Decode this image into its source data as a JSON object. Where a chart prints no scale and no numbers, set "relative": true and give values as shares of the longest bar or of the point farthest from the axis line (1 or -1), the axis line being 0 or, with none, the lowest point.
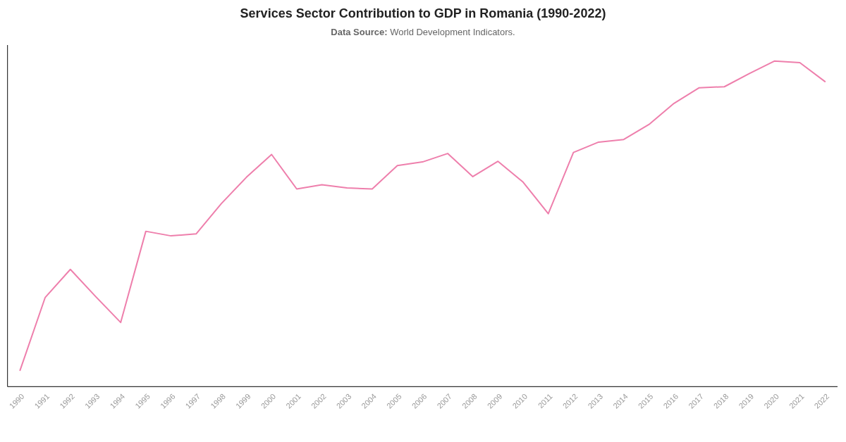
{
  "chart_data": {
    "type": "line",
    "title": "Services Sector Contribution to GDP in Romania (1990-2022)",
    "subtitle": "Data Source: World Development Indicators.",
    "categories": [
      "1990",
      "1991",
      "1992",
      "1993",
      "1994",
      "1995",
      "1996",
      "1997",
      "1998",
      "1999",
      "2000",
      "2001",
      "2002",
      "2003",
      "2004",
      "2005",
      "2006",
      "2007",
      "2008",
      "2009",
      "2010",
      "2011",
      "2012",
      "2013",
      "2014",
      "2015",
      "2016",
      "2017",
      "2018",
      "2019",
      "2020",
      "2021",
      "2022"
    ],
    "values": [
      0.05,
      0.274,
      0.36,
      0.277,
      0.197,
      0.477,
      0.463,
      0.469,
      0.562,
      0.643,
      0.713,
      0.607,
      0.62,
      0.61,
      0.607,
      0.679,
      0.69,
      0.716,
      0.645,
      0.692,
      0.628,
      0.531,
      0.719,
      0.751,
      0.759,
      0.805,
      0.87,
      0.918,
      0.921,
      0.962,
      1,
      0.995,
      0.937
    ],
    "color": "#ee7fac",
    "relative": true
  }
}
